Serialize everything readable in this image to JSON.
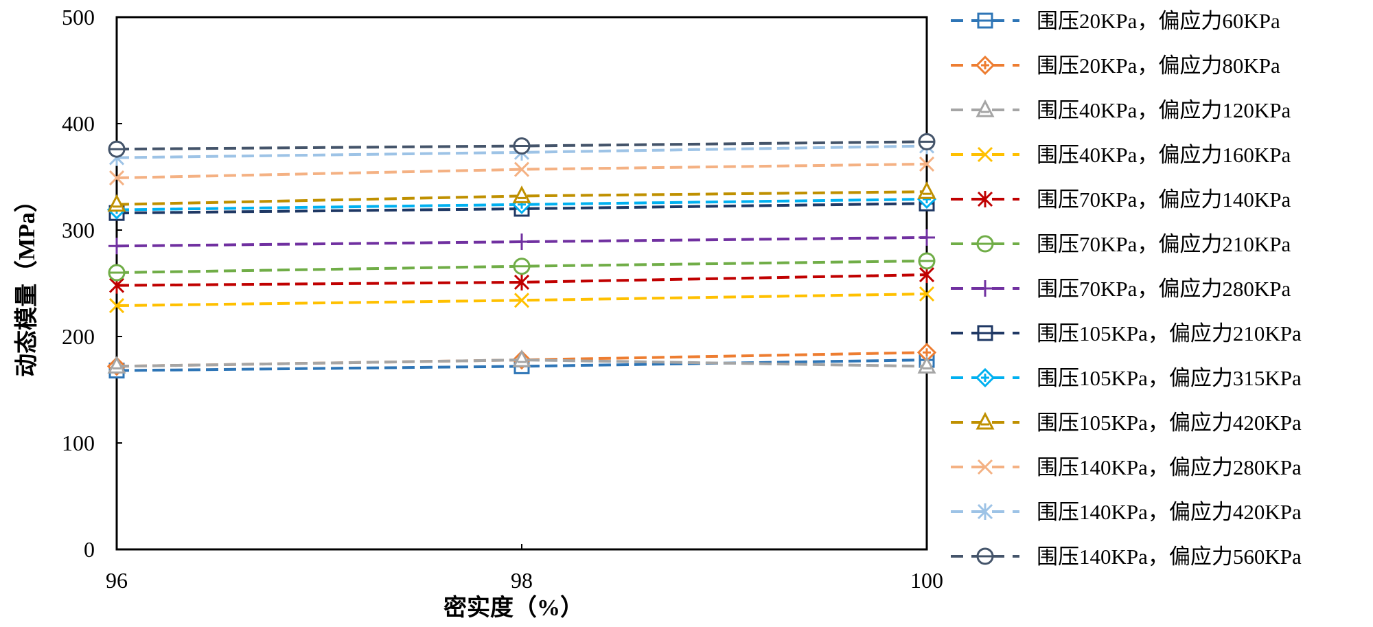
{
  "chart_data": {
    "type": "line",
    "title": "",
    "xlabel": "密实度（%）",
    "ylabel": "动态模量（MPa）",
    "x": [
      96,
      98,
      100
    ],
    "xlim": [
      96,
      100
    ],
    "ylim": [
      0,
      500
    ],
    "x_ticks": [
      "96",
      "98",
      "100"
    ],
    "y_ticks": [
      "0",
      "100",
      "200",
      "300",
      "400",
      "500"
    ],
    "grid": false,
    "legend_position": "right",
    "series": [
      {
        "name": "围压20KPa，偏应力60KPa",
        "color": "#2E75B6",
        "marker": "square-minus",
        "values": [
          168,
          172,
          178
        ]
      },
      {
        "name": "围压20KPa，偏应力80KPa",
        "color": "#ED7D31",
        "marker": "diamond-plus",
        "values": [
          172,
          178,
          185
        ]
      },
      {
        "name": "围压40KPa，偏应力120KPa",
        "color": "#A5A5A5",
        "marker": "triangle",
        "values": [
          172,
          178,
          172
        ]
      },
      {
        "name": "围压40KPa，偏应力160KPa",
        "color": "#FFC000",
        "marker": "x",
        "values": [
          229,
          234,
          240
        ]
      },
      {
        "name": "围压70KPa，偏应力140KPa",
        "color": "#C00000",
        "marker": "asterisk",
        "values": [
          248,
          251,
          258
        ]
      },
      {
        "name": "围压70KPa，偏应力210KPa",
        "color": "#70AD47",
        "marker": "circle-minus",
        "values": [
          260,
          266,
          271
        ]
      },
      {
        "name": "围压70KPa，偏应力280KPa",
        "color": "#7030A0",
        "marker": "plus",
        "values": [
          285,
          289,
          293
        ]
      },
      {
        "name": "围压105KPa，偏应力210KPa",
        "color": "#1F3864",
        "marker": "square-minus",
        "values": [
          316,
          320,
          325
        ]
      },
      {
        "name": "围压105KPa，偏应力315KPa",
        "color": "#00B0F0",
        "marker": "diamond-plus",
        "values": [
          319,
          324,
          329
        ]
      },
      {
        "name": "围压105KPa，偏应力420KPa",
        "color": "#BF9000",
        "marker": "triangle",
        "values": [
          324,
          332,
          336
        ]
      },
      {
        "name": "围压140KPa，偏应力280KPa",
        "color": "#F4B183",
        "marker": "x",
        "values": [
          349,
          357,
          362
        ]
      },
      {
        "name": "围压140KPa，偏应力420KPa",
        "color": "#9DC3E6",
        "marker": "asterisk",
        "values": [
          368,
          373,
          379
        ]
      },
      {
        "name": "围压140KPa，偏应力560KPa",
        "color": "#44546A",
        "marker": "circle-minus",
        "values": [
          376,
          379,
          383
        ]
      }
    ]
  }
}
